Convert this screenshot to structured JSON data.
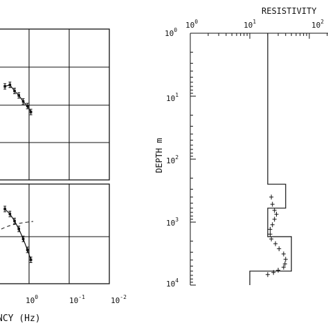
{
  "left_panel": {
    "xlabel_visible": "NCY (Hz)",
    "x_tick_labels": [
      {
        "base": "10",
        "exp": "0"
      },
      {
        "base": "10",
        "exp": "-1"
      },
      {
        "base": "10",
        "exp": "-2"
      }
    ]
  },
  "right_panel": {
    "title_visible": "RESISTIVITY",
    "ylabel": "DEPTH m",
    "x_tick_labels": [
      {
        "base": "10",
        "exp": "0"
      },
      {
        "base": "10",
        "exp": "1"
      },
      {
        "base": "10",
        "exp": "2"
      }
    ],
    "y_tick_labels": [
      {
        "base": "10",
        "exp": "0"
      },
      {
        "base": "10",
        "exp": "1"
      },
      {
        "base": "10",
        "exp": "2"
      },
      {
        "base": "10",
        "exp": "3"
      },
      {
        "base": "10",
        "exp": "4"
      }
    ]
  },
  "chart_data": [
    {
      "type": "scatter",
      "description_of_panel": "left (cropped) sounding-curve panels",
      "x_scale": "log (frequency decreasing to the right)",
      "series": [
        {
          "values_upper": [
            {
              "x": 4.0,
              "y": 0.38
            },
            {
              "x": 3.0,
              "y": 0.37
            },
            {
              "x": 2.3,
              "y": 0.41
            },
            {
              "x": 1.8,
              "y": 0.44
            },
            {
              "x": 1.4,
              "y": 0.48
            },
            {
              "x": 1.1,
              "y": 0.51
            },
            {
              "x": 0.9,
              "y": 0.55
            }
          ],
          "values_lower": [
            {
              "x": 4.0,
              "y": 0.25
            },
            {
              "x": 3.0,
              "y": 0.3
            },
            {
              "x": 2.3,
              "y": 0.37
            },
            {
              "x": 1.8,
              "y": 0.45
            },
            {
              "x": 1.4,
              "y": 0.55
            },
            {
              "x": 1.1,
              "y": 0.66
            },
            {
              "x": 0.9,
              "y": 0.76
            }
          ]
        }
      ],
      "grid": true
    },
    {
      "type": "line",
      "xscale": "log",
      "yscale": "log",
      "xlim": [
        1,
        100
      ],
      "ylim": [
        1,
        10000
      ],
      "y_inverted": true,
      "model_steps": [
        {
          "resistivity": 20,
          "depth_top": 1,
          "depth_bottom": 250
        },
        {
          "resistivity": 40,
          "depth_top": 250,
          "depth_bottom": 600
        },
        {
          "resistivity": 20,
          "depth_top": 600,
          "depth_bottom": 1700
        },
        {
          "resistivity": 50,
          "depth_top": 1700,
          "depth_bottom": 6000
        },
        {
          "resistivity": 10,
          "depth_top": 6000,
          "depth_bottom": 10000
        }
      ],
      "measured": [
        {
          "resistivity": 23,
          "depth": 400
        },
        {
          "resistivity": 24,
          "depth": 520
        },
        {
          "resistivity": 26,
          "depth": 650
        },
        {
          "resistivity": 28,
          "depth": 750
        },
        {
          "resistivity": 26,
          "depth": 900
        },
        {
          "resistivity": 24,
          "depth": 1100
        },
        {
          "resistivity": 22,
          "depth": 1300
        },
        {
          "resistivity": 22,
          "depth": 1550
        },
        {
          "resistivity": 23,
          "depth": 1850
        },
        {
          "resistivity": 27,
          "depth": 2200
        },
        {
          "resistivity": 31,
          "depth": 2650
        },
        {
          "resistivity": 37,
          "depth": 3200
        },
        {
          "resistivity": 40,
          "depth": 3900
        },
        {
          "resistivity": 39,
          "depth": 4600
        },
        {
          "resistivity": 37,
          "depth": 5200
        },
        {
          "resistivity": 30,
          "depth": 5800
        },
        {
          "resistivity": 25,
          "depth": 6300
        },
        {
          "resistivity": 20,
          "depth": 6800
        }
      ],
      "grid": false
    }
  ]
}
